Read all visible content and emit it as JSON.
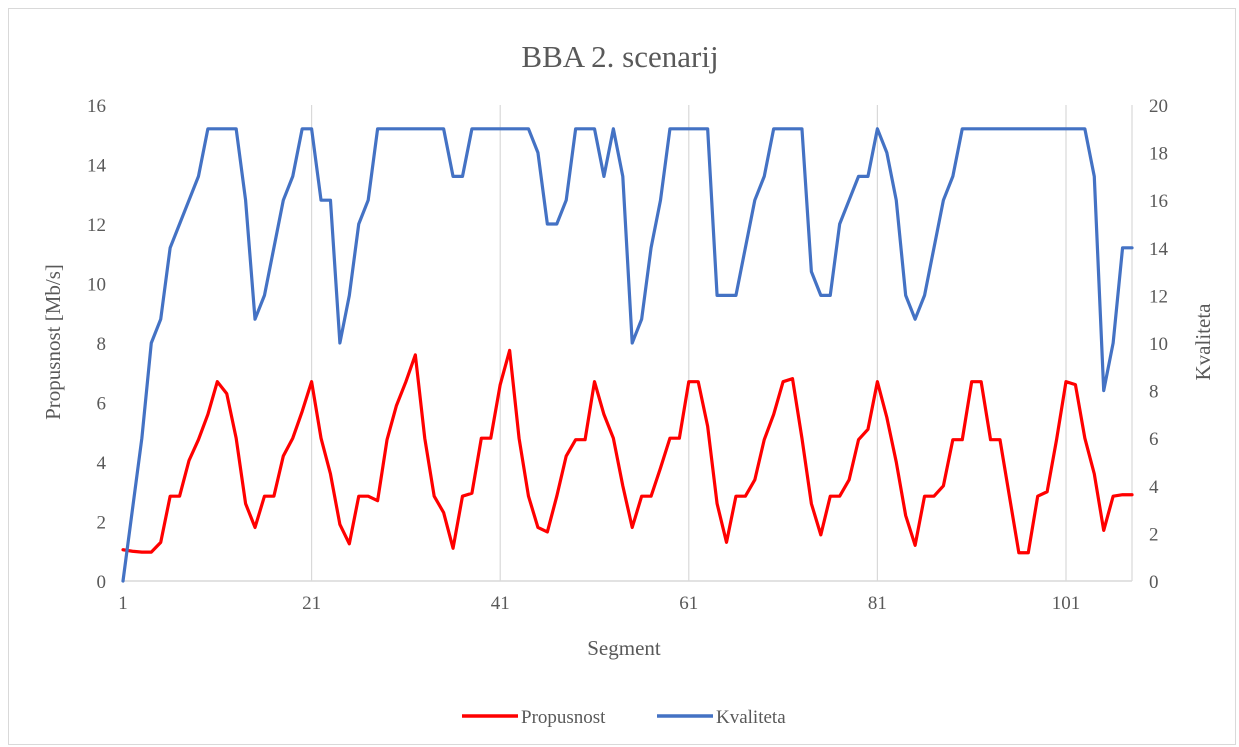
{
  "chart_data": {
    "type": "line",
    "title": "BBA 2. scenarij",
    "xlabel": "Segment",
    "ylabel": "Propusnost [Mb/s]",
    "y2label": "Kvaliteta",
    "xlim": [
      1,
      108
    ],
    "ylim": [
      0,
      16
    ],
    "y2lim": [
      0,
      20
    ],
    "x_ticks": [
      1,
      21,
      41,
      61,
      81,
      101
    ],
    "y_ticks": [
      0,
      2,
      4,
      6,
      8,
      10,
      12,
      14,
      16
    ],
    "y2_ticks": [
      0,
      2,
      4,
      6,
      8,
      10,
      12,
      14,
      16,
      18,
      20
    ],
    "grid": "vertical",
    "legend": "bottom",
    "series": [
      {
        "name": "Propusnost",
        "axis": "left",
        "color": "#ff0000",
        "values": [
          1.05,
          1.0,
          0.97,
          0.97,
          1.3,
          2.85,
          2.85,
          4.05,
          4.75,
          5.6,
          6.7,
          6.3,
          4.8,
          2.6,
          1.8,
          2.85,
          2.85,
          4.2,
          4.8,
          5.7,
          6.7,
          4.8,
          3.6,
          1.9,
          1.25,
          2.85,
          2.85,
          2.7,
          4.75,
          5.9,
          6.7,
          7.6,
          4.8,
          2.85,
          2.3,
          1.1,
          2.85,
          2.95,
          4.8,
          4.8,
          6.6,
          7.75,
          4.8,
          2.85,
          1.8,
          1.65,
          2.85,
          4.2,
          4.75,
          4.75,
          6.7,
          5.6,
          4.8,
          3.2,
          1.8,
          2.85,
          2.85,
          3.8,
          4.8,
          4.8,
          6.7,
          6.7,
          5.2,
          2.6,
          1.3,
          2.85,
          2.85,
          3.4,
          4.75,
          5.6,
          6.7,
          6.8,
          4.8,
          2.6,
          1.55,
          2.85,
          2.85,
          3.4,
          4.75,
          5.1,
          6.7,
          5.5,
          4.0,
          2.2,
          1.2,
          2.85,
          2.85,
          3.2,
          4.75,
          4.75,
          6.7,
          6.7,
          4.75,
          4.75,
          2.85,
          0.95,
          0.95,
          2.85,
          3.0,
          4.75,
          6.7,
          6.6,
          4.8,
          3.6,
          1.7,
          2.85,
          2.9,
          2.9
        ]
      },
      {
        "name": "Kvaliteta",
        "axis": "right",
        "color": "#4472c4",
        "values": [
          0,
          3,
          6,
          10,
          11,
          14,
          15,
          16,
          17,
          19,
          19,
          19,
          19,
          16,
          11,
          12,
          14,
          16,
          17,
          19,
          19,
          16,
          16,
          10,
          12,
          15,
          16,
          19,
          19,
          19,
          19,
          19,
          19,
          19,
          19,
          17,
          17,
          19,
          19,
          19,
          19,
          19,
          19,
          19,
          18,
          15,
          15,
          16,
          19,
          19,
          19,
          17,
          19,
          17,
          10,
          11,
          14,
          16,
          19,
          19,
          19,
          19,
          19,
          12,
          12,
          12,
          14,
          16,
          17,
          19,
          19,
          19,
          19,
          13,
          12,
          12,
          15,
          16,
          17,
          17,
          19,
          18,
          16,
          12,
          11,
          12,
          14,
          16,
          17,
          19,
          19,
          19,
          19,
          19,
          19,
          19,
          19,
          19,
          19,
          19,
          19,
          19,
          19,
          17,
          8,
          10,
          14,
          14
        ]
      }
    ]
  }
}
